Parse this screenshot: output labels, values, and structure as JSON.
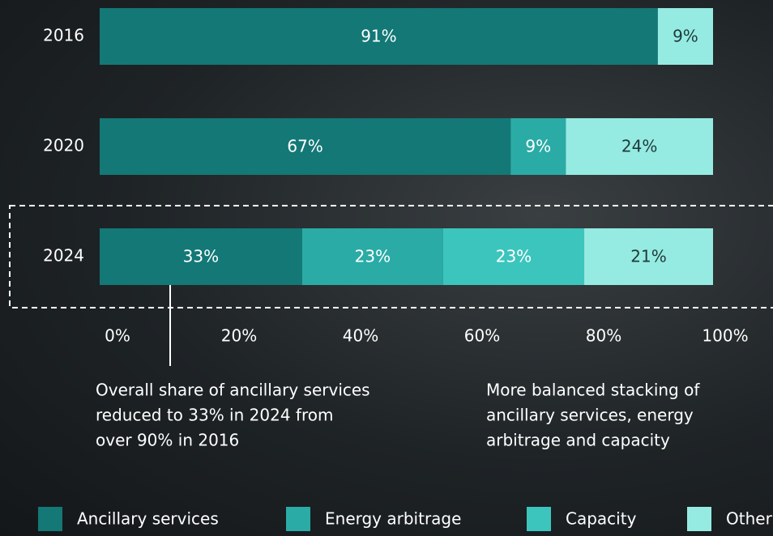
{
  "chart_data": {
    "type": "stacked-bar-horizontal",
    "categories": [
      "2016",
      "2020",
      "2024"
    ],
    "series": [
      {
        "name": "Ancillary services",
        "color": "#137876",
        "values": [
          91,
          67,
          33
        ]
      },
      {
        "name": "Energy arbitrage",
        "color": "#2aaba6",
        "values": [
          null,
          9,
          23
        ]
      },
      {
        "name": "Capacity",
        "color": "#3cc5bc",
        "values": [
          null,
          null,
          23
        ]
      },
      {
        "name": "Other",
        "color": "#95ebe2",
        "values": [
          9,
          24,
          21
        ]
      }
    ],
    "value_labels": [
      [
        "91%",
        "67%",
        "33%"
      ],
      [
        null,
        "9%",
        "23%"
      ],
      [
        null,
        null,
        "23%"
      ],
      [
        "9%",
        "24%",
        "21%"
      ]
    ],
    "xlim": [
      0,
      100
    ],
    "xticks": [
      {
        "value": 0,
        "label": "0%"
      },
      {
        "value": 20,
        "label": "20%"
      },
      {
        "value": 40,
        "label": "40%"
      },
      {
        "value": 60,
        "label": "60%"
      },
      {
        "value": 80,
        "label": "80%"
      },
      {
        "value": 100,
        "label": "100%"
      }
    ],
    "annotations": [
      {
        "lines": [
          "Overall share of ancillary services",
          "reduced to 33% in 2024 from",
          "over 90% in 2016"
        ]
      },
      {
        "lines": [
          "More balanced stacking of",
          "ancillary services, energy",
          "arbitrage and capacity"
        ]
      }
    ]
  }
}
